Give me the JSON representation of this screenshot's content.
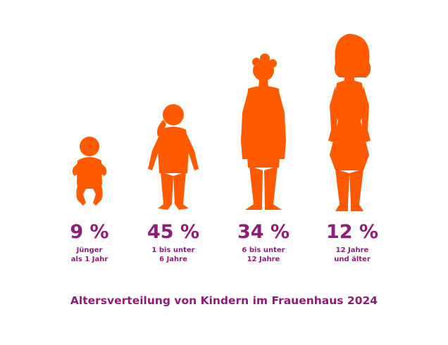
{
  "chart_data": {
    "type": "pictograph",
    "title": "Altersverteilung von Kindern im Frauenhaus 2024",
    "categories": [
      [
        "Jünger",
        "als 1 Jahr"
      ],
      [
        "1 bis unter",
        "6 Jahre"
      ],
      [
        "6 bis unter",
        "12 Jahre"
      ],
      [
        "12 Jahre",
        "und älter"
      ]
    ],
    "value_labels": [
      "9 %",
      "45 %",
      "34 %",
      "12 %"
    ],
    "values": [
      9,
      45,
      34,
      12
    ],
    "unit": "%",
    "icons": [
      "baby-icon",
      "toddler-girl-icon",
      "boy-icon",
      "woman-icon"
    ]
  },
  "colors": {
    "figure": "#FF5A00",
    "text": "#8E1C78",
    "background": "#FFFFFF"
  }
}
